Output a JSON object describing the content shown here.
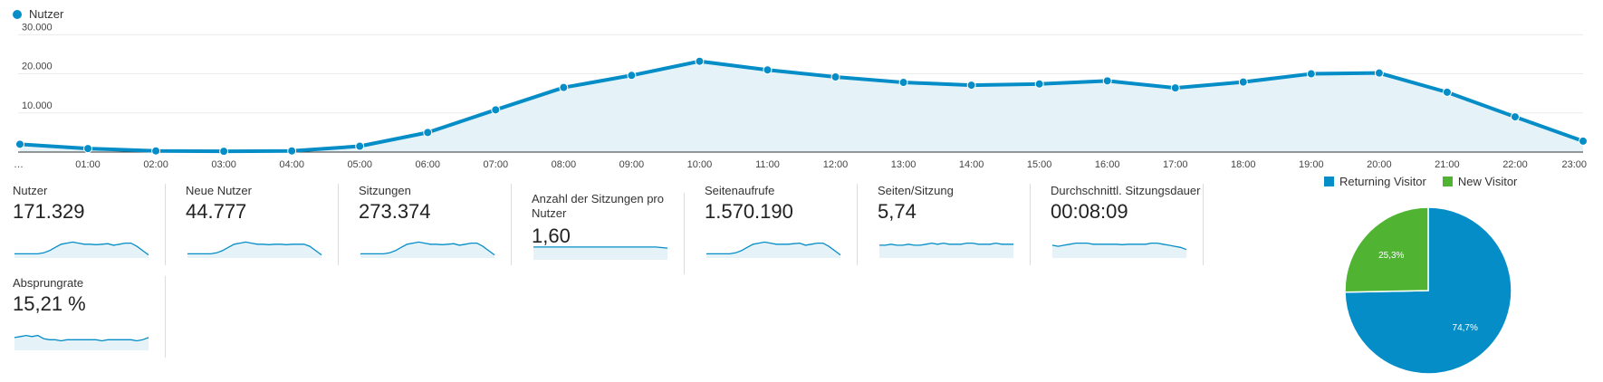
{
  "chart_data": [
    {
      "type": "area",
      "legend": {
        "label": "Nutzer",
        "placement": "top-left"
      },
      "title": "",
      "xlabel": "",
      "ylabel": "",
      "x": [
        "…",
        "01:00",
        "02:00",
        "03:00",
        "04:00",
        "05:00",
        "06:00",
        "07:00",
        "08:00",
        "09:00",
        "10:00",
        "11:00",
        "12:00",
        "13:00",
        "14:00",
        "15:00",
        "16:00",
        "17:00",
        "18:00",
        "19:00",
        "20:00",
        "21:00",
        "22:00",
        "23:00"
      ],
      "series": [
        {
          "name": "Nutzer",
          "values": [
            2000,
            900,
            300,
            200,
            300,
            1500,
            5000,
            10800,
            16500,
            19600,
            23200,
            21000,
            19200,
            17800,
            17100,
            17400,
            18200,
            16400,
            17900,
            20000,
            20200,
            15300,
            9000,
            2800
          ]
        }
      ],
      "yticks": [
        "10.000",
        "20.000",
        "30.000"
      ],
      "ytick_values": [
        10000,
        20000,
        30000
      ],
      "ylim": [
        0,
        31000
      ],
      "grid": true,
      "color": "#058dc7",
      "fill": "#e5f3f9"
    },
    {
      "type": "pie",
      "labels": [
        "Returning Visitor",
        "New Visitor"
      ],
      "values": [
        74.7,
        25.3
      ],
      "value_labels": [
        "74,7%",
        "25,3%"
      ],
      "colors": [
        "#058dc7",
        "#50b432"
      ],
      "legend_placement": "top"
    }
  ],
  "metrics": [
    {
      "label": "Nutzer",
      "value": "171.329",
      "spark": [
        3,
        3,
        3,
        3,
        3,
        4,
        6,
        9,
        12,
        13,
        14,
        13,
        12,
        12,
        11.5,
        12,
        12.5,
        11,
        12,
        13,
        13,
        10,
        6,
        2
      ]
    },
    {
      "label": "Neue Nutzer",
      "value": "44.777",
      "spark": [
        3,
        3,
        3,
        3,
        3,
        4,
        6,
        9,
        12,
        13,
        14,
        13,
        12,
        12,
        11.5,
        12,
        12,
        11.5,
        12,
        12,
        12,
        10,
        6,
        2
      ]
    },
    {
      "label": "Sitzungen",
      "value": "273.374",
      "spark": [
        3,
        3,
        3,
        3,
        3,
        4,
        6,
        9,
        12,
        13,
        14,
        13,
        12,
        12,
        11.5,
        12,
        12.5,
        11,
        12,
        13,
        13,
        10,
        6,
        2
      ]
    },
    {
      "label": "Anzahl der Sitzungen pro Nutzer",
      "value": "1,60",
      "spark": [
        11,
        11,
        11,
        11,
        11,
        11,
        11,
        11,
        11,
        11,
        11,
        11,
        11,
        11,
        11,
        11,
        11,
        11,
        11,
        11,
        11,
        11,
        10.5,
        10
      ]
    },
    {
      "label": "Seitenaufrufe",
      "value": "1.570.190",
      "spark": [
        3,
        3,
        3,
        3,
        3,
        4,
        6,
        9,
        12,
        13,
        14,
        13,
        12,
        12,
        12,
        12.5,
        13,
        11,
        12,
        13,
        13,
        10,
        6,
        2
      ]
    },
    {
      "label": "Seiten/Sitzung",
      "value": "5,74",
      "spark": [
        11,
        11,
        12,
        11,
        11,
        12,
        11,
        11,
        12,
        13,
        12,
        13,
        12,
        12,
        12,
        13,
        13,
        12,
        12,
        12,
        13,
        12,
        12,
        12
      ]
    },
    {
      "label": "Durchschnittl. Sitzungsdauer",
      "value": "00:08:09",
      "spark": [
        11,
        10,
        11,
        12,
        13,
        13,
        13,
        12,
        12,
        12,
        12,
        12,
        11.5,
        12,
        12,
        12,
        12,
        13,
        13,
        12,
        11,
        10,
        9,
        7
      ]
    },
    {
      "label": "Absprungrate",
      "value": "15,21 %",
      "spark": [
        11,
        12,
        13,
        12,
        13,
        10,
        9,
        9,
        8,
        9,
        9,
        9,
        9,
        9,
        9,
        8,
        9,
        9,
        9,
        9,
        9,
        8,
        9,
        11
      ]
    }
  ]
}
